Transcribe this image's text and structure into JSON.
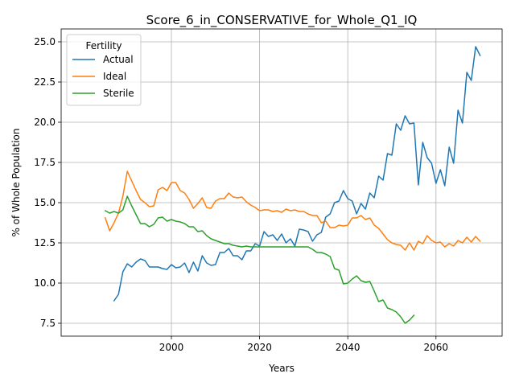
{
  "chart_data": {
    "type": "line",
    "title": "Score_6_in_CONSERVATIVE_for_Whole_Q1_IQ",
    "xlabel": "Years",
    "ylabel": "% of Whole Population",
    "xlim": [
      1975,
      2075
    ],
    "ylim": [
      6.7,
      25.8
    ],
    "xticks": [
      2000,
      2020,
      2040,
      2060
    ],
    "xtick_labels": [
      "2000",
      "2020",
      "2040",
      "2060"
    ],
    "yticks": [
      7.5,
      10.0,
      12.5,
      15.0,
      17.5,
      20.0,
      22.5,
      25.0
    ],
    "ytick_labels": [
      "7.5",
      "10.0",
      "12.5",
      "15.0",
      "17.5",
      "20.0",
      "22.5",
      "25.0"
    ],
    "grid": true,
    "legend": {
      "title": "Fertility",
      "position": "top-left"
    },
    "series": [
      {
        "name": "Actual",
        "color": "#1f77b4",
        "x": [
          1987,
          1988,
          1989,
          1990,
          1991,
          1992,
          1993,
          1994,
          1995,
          1996,
          1997,
          1998,
          1999,
          2000,
          2001,
          2002,
          2003,
          2004,
          2005,
          2006,
          2007,
          2008,
          2009,
          2010,
          2011,
          2012,
          2013,
          2014,
          2015,
          2016,
          2017,
          2018,
          2019,
          2020,
          2021,
          2022,
          2023,
          2024,
          2025,
          2026,
          2027,
          2028,
          2029,
          2030,
          2031,
          2032,
          2033,
          2034,
          2035,
          2036,
          2037,
          2038,
          2039,
          2040,
          2041,
          2042,
          2043,
          2044,
          2045,
          2046,
          2047,
          2048,
          2049,
          2050,
          2051,
          2052,
          2053,
          2054,
          2055,
          2056,
          2057,
          2058,
          2059,
          2060,
          2061,
          2062,
          2063,
          2064,
          2065,
          2066,
          2067,
          2068,
          2069,
          2070
        ],
        "y": [
          8.9,
          9.3,
          10.7,
          11.2,
          11.0,
          11.3,
          11.5,
          11.4,
          11.0,
          11.0,
          11.0,
          10.9,
          10.85,
          11.15,
          10.95,
          11.0,
          11.25,
          10.65,
          11.3,
          10.75,
          11.7,
          11.25,
          11.1,
          11.15,
          11.9,
          11.9,
          12.15,
          11.7,
          11.7,
          11.45,
          12.0,
          12.0,
          12.45,
          12.3,
          13.2,
          12.9,
          13.0,
          12.65,
          13.05,
          12.5,
          12.75,
          12.3,
          13.35,
          13.3,
          13.2,
          12.6,
          13.0,
          13.15,
          14.1,
          14.3,
          15.0,
          15.1,
          15.75,
          15.25,
          15.1,
          14.3,
          14.95,
          14.6,
          15.6,
          15.3,
          16.65,
          16.4,
          18.05,
          17.95,
          19.9,
          19.5,
          20.4,
          19.9,
          19.95,
          16.1,
          18.75,
          17.8,
          17.45,
          16.2,
          17.05,
          16.05,
          18.45,
          17.45,
          20.75,
          19.95,
          23.1,
          22.6,
          24.7,
          24.15
        ]
      },
      {
        "name": "Ideal",
        "color": "#ff7f0e",
        "x": [
          1985,
          1986,
          1987,
          1988,
          1989,
          1990,
          1991,
          1992,
          1993,
          1994,
          1995,
          1996,
          1997,
          1998,
          1999,
          2000,
          2001,
          2002,
          2003,
          2004,
          2005,
          2006,
          2007,
          2008,
          2009,
          2010,
          2011,
          2012,
          2013,
          2014,
          2015,
          2016,
          2017,
          2018,
          2019,
          2020,
          2021,
          2022,
          2023,
          2024,
          2025,
          2026,
          2027,
          2028,
          2029,
          2030,
          2031,
          2032,
          2033,
          2034,
          2035,
          2036,
          2037,
          2038,
          2039,
          2040,
          2041,
          2042,
          2043,
          2044,
          2045,
          2046,
          2047,
          2048,
          2049,
          2050,
          2051,
          2052,
          2053,
          2054,
          2055,
          2056,
          2057,
          2058,
          2059,
          2060,
          2061,
          2062,
          2063,
          2064,
          2065,
          2066,
          2067,
          2068,
          2069,
          2070
        ],
        "y": [
          14.05,
          13.25,
          13.75,
          14.35,
          15.4,
          16.95,
          16.35,
          15.75,
          15.2,
          15.0,
          14.75,
          14.8,
          15.8,
          15.95,
          15.75,
          16.25,
          16.25,
          15.75,
          15.6,
          15.2,
          14.65,
          14.95,
          15.3,
          14.7,
          14.65,
          15.1,
          15.25,
          15.25,
          15.6,
          15.35,
          15.3,
          15.35,
          15.05,
          14.85,
          14.7,
          14.5,
          14.55,
          14.55,
          14.45,
          14.5,
          14.4,
          14.6,
          14.5,
          14.55,
          14.45,
          14.45,
          14.3,
          14.2,
          14.2,
          13.75,
          13.85,
          13.45,
          13.45,
          13.6,
          13.55,
          13.6,
          14.05,
          14.05,
          14.2,
          13.95,
          14.05,
          13.6,
          13.4,
          13.05,
          12.7,
          12.5,
          12.4,
          12.35,
          12.05,
          12.5,
          12.05,
          12.6,
          12.45,
          12.95,
          12.65,
          12.5,
          12.55,
          12.25,
          12.45,
          12.3,
          12.65,
          12.5,
          12.85,
          12.55,
          12.9,
          12.6
        ]
      },
      {
        "name": "Sterile",
        "color": "#2ca02c",
        "x": [
          1985,
          1986,
          1987,
          1988,
          1989,
          1990,
          1991,
          1992,
          1993,
          1994,
          1995,
          1996,
          1997,
          1998,
          1999,
          2000,
          2001,
          2002,
          2003,
          2004,
          2005,
          2006,
          2007,
          2008,
          2009,
          2010,
          2011,
          2012,
          2013,
          2014,
          2015,
          2016,
          2017,
          2018,
          2019,
          2020,
          2021,
          2022,
          2023,
          2024,
          2025,
          2026,
          2027,
          2028,
          2029,
          2030,
          2031,
          2032,
          2033,
          2034,
          2035,
          2036,
          2037,
          2038,
          2039,
          2040,
          2041,
          2042,
          2043,
          2044,
          2045,
          2046,
          2047,
          2048,
          2049,
          2050,
          2051,
          2052,
          2053,
          2054,
          2055
        ],
        "y": [
          14.5,
          14.35,
          14.45,
          14.35,
          14.55,
          15.4,
          14.8,
          14.25,
          13.7,
          13.7,
          13.5,
          13.65,
          14.05,
          14.1,
          13.85,
          13.95,
          13.85,
          13.8,
          13.7,
          13.5,
          13.5,
          13.2,
          13.25,
          12.95,
          12.75,
          12.65,
          12.55,
          12.45,
          12.45,
          12.35,
          12.3,
          12.25,
          12.3,
          12.25,
          12.25,
          12.25,
          12.25,
          12.25,
          12.25,
          12.25,
          12.25,
          12.25,
          12.25,
          12.25,
          12.25,
          12.25,
          12.25,
          12.1,
          11.9,
          11.9,
          11.8,
          11.65,
          10.9,
          10.8,
          9.95,
          10.0,
          10.25,
          10.45,
          10.15,
          10.05,
          10.1,
          9.5,
          8.85,
          8.95,
          8.45,
          8.35,
          8.2,
          7.9,
          7.5,
          7.7,
          8.0
        ]
      }
    ]
  }
}
